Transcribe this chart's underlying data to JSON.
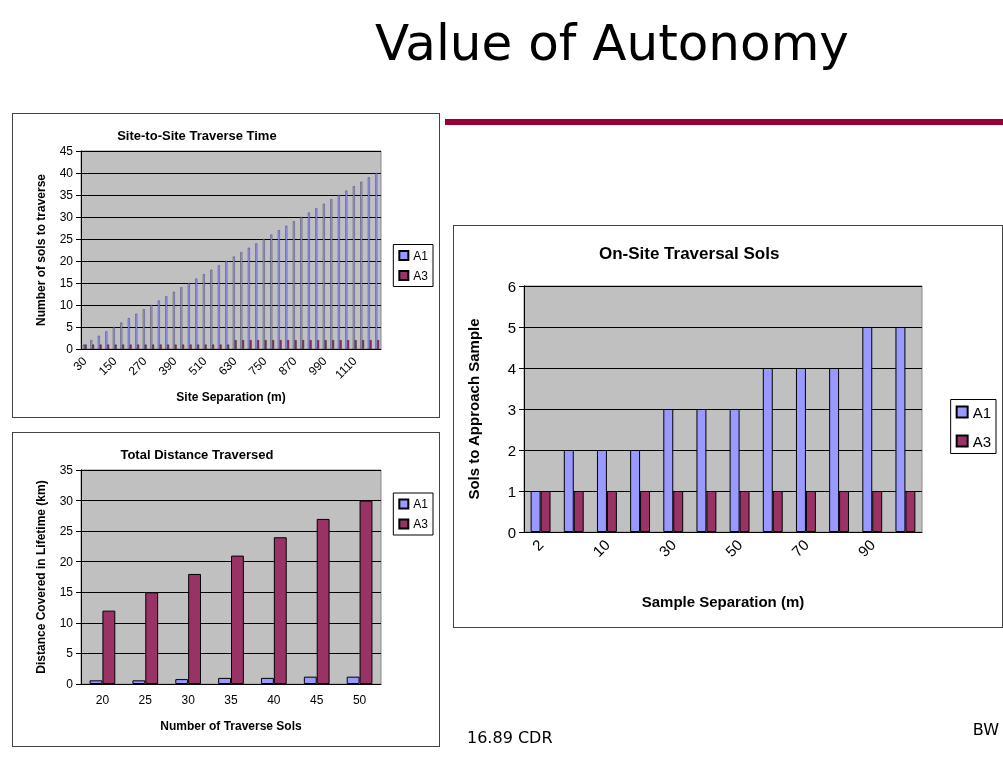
{
  "chart_data": [
    {
      "type": "other",
      "title": "Value of Autonomy",
      "annotations": [
        "16.89 CDR",
        "BW"
      ]
    },
    {
      "type": "bar",
      "title": "Site-to-Site Traverse Time",
      "xlabel": "Site Separation (m)",
      "ylabel": "Number of sols to traverse",
      "categories": [
        "30",
        null,
        null,
        null,
        "150",
        null,
        null,
        null,
        "270",
        null,
        null,
        null,
        "390",
        null,
        null,
        null,
        "510",
        null,
        null,
        null,
        "630",
        null,
        null,
        null,
        "750",
        null,
        null,
        null,
        "870",
        null,
        null,
        null,
        "990",
        null,
        null,
        null,
        "1110",
        null,
        null,
        null
      ],
      "series": [
        {
          "name": "A1",
          "color": "#9999ff",
          "values": [
            1,
            2,
            3,
            4,
            5,
            6,
            7,
            8,
            9,
            10,
            11,
            12,
            13,
            14,
            15,
            16,
            17,
            18,
            19,
            20,
            21,
            22,
            23,
            24,
            25,
            26,
            27,
            28,
            29,
            30,
            31,
            32,
            33,
            34,
            35,
            36,
            37,
            38,
            39,
            40
          ]
        },
        {
          "name": "A3",
          "color": "#993366",
          "values": [
            1,
            1,
            1,
            1,
            1,
            1,
            1,
            1,
            1,
            1,
            1,
            1,
            1,
            1,
            1,
            1,
            1,
            1,
            1,
            1,
            2,
            2,
            2,
            2,
            2,
            2,
            2,
            2,
            2,
            2,
            2,
            2,
            2,
            2,
            2,
            2,
            2,
            2,
            2,
            2
          ]
        }
      ],
      "ylim": [
        0,
        45
      ],
      "yticks": [
        0,
        5,
        10,
        15,
        20,
        25,
        30,
        35,
        40,
        45
      ],
      "grid": "y",
      "legend": "right"
    },
    {
      "type": "bar",
      "title": "Total Distance Traversed",
      "xlabel": "Number of Traverse Sols",
      "ylabel": "Distance Covered in Lifetime (km)",
      "categories": [
        "20",
        "25",
        "30",
        "35",
        "40",
        "45",
        "50"
      ],
      "series": [
        {
          "name": "A1",
          "color": "#9999ff",
          "values": [
            0.6,
            0.6,
            0.8,
            1,
            1,
            1.2,
            1.2
          ]
        },
        {
          "name": "A3",
          "color": "#993366",
          "values": [
            12,
            15,
            18,
            21,
            24,
            27,
            30
          ]
        }
      ],
      "ylim": [
        0,
        35
      ],
      "yticks": [
        0,
        5,
        10,
        15,
        20,
        25,
        30,
        35
      ],
      "grid": "y",
      "legend": "top right"
    },
    {
      "type": "bar",
      "title": "On-Site Traversal Sols",
      "xlabel": "Sample Separation (m)",
      "ylabel": "Sols to Approach Sample",
      "categories": [
        "2",
        null,
        "10",
        null,
        "30",
        null,
        "50",
        null,
        "70",
        null,
        "90",
        null
      ],
      "series": [
        {
          "name": "A1",
          "color": "#9999ff",
          "values": [
            1,
            2,
            2,
            2,
            3,
            3,
            3,
            4,
            4,
            4,
            5,
            5
          ]
        },
        {
          "name": "A3",
          "color": "#993366",
          "values": [
            1,
            1,
            1,
            1,
            1,
            1,
            1,
            1,
            1,
            1,
            1,
            1
          ]
        }
      ],
      "ylim": [
        0,
        6
      ],
      "yticks": [
        0,
        1,
        2,
        3,
        4,
        5,
        6
      ],
      "grid": "y",
      "legend": "right"
    }
  ]
}
